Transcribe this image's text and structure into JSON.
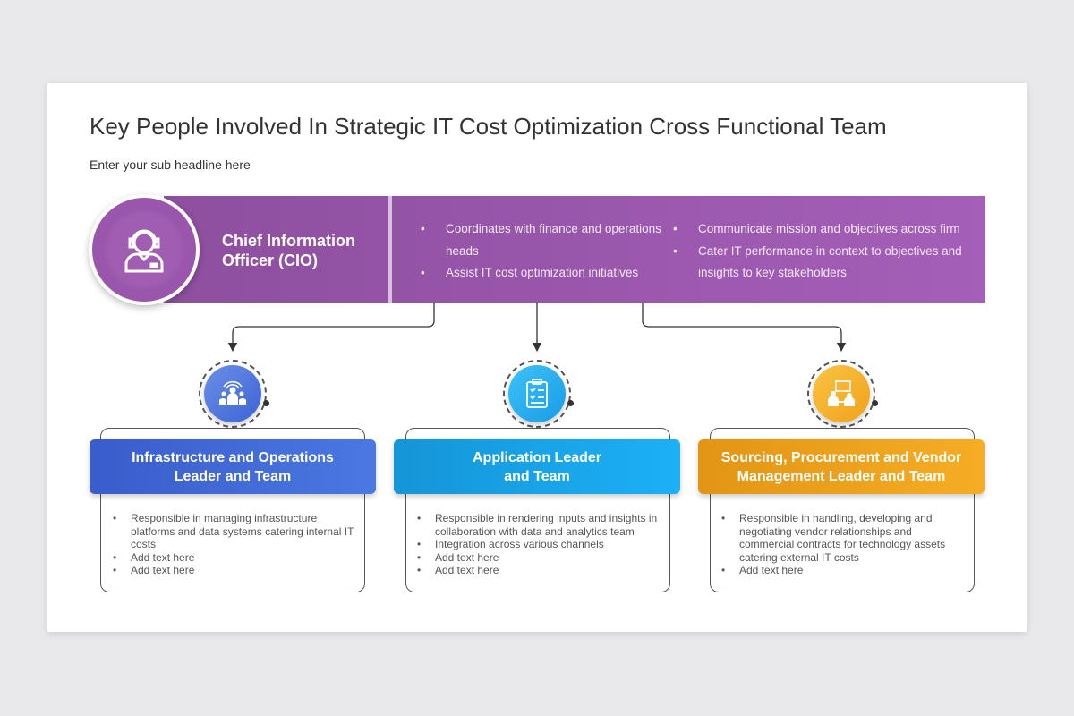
{
  "title": "Key People Involved In Strategic IT Cost Optimization Cross Functional Team",
  "subtitle": "Enter your sub headline here",
  "cio": {
    "title_line1": "Chief Information",
    "title_line2": "Officer (CIO)",
    "icon": "user-headset-icon",
    "bullets_left": [
      "Coordinates with finance and operations heads",
      "Assist IT cost optimization initiatives"
    ],
    "bullets_right": [
      "Communicate mission and objectives across firm",
      "Cater IT performance in context to objectives and insights to key stakeholders"
    ],
    "color": "#9a55ad"
  },
  "teams": [
    {
      "title_line1": "Infrastructure and Operations",
      "title_line2": "Leader and Team",
      "icon": "team-broadcast-icon",
      "color": "#4169d6",
      "bullets": [
        "Responsible in managing infrastructure platforms and data systems catering internal IT costs",
        "Add text here",
        "Add text here"
      ]
    },
    {
      "title_line1": "Application Leader",
      "title_line2": "and Team",
      "icon": "clipboard-checklist-icon",
      "color": "#1ba7ea",
      "bullets": [
        "Responsible in rendering inputs and insights in collaboration with data and analytics team",
        "Integration across various channels",
        "Add text here",
        "Add text here"
      ]
    },
    {
      "title_line1": "Sourcing, Procurement and Vendor",
      "title_line2": "Management Leader and Team",
      "icon": "meeting-presentation-icon",
      "color": "#f0a51f",
      "bullets": [
        "Responsible in handling, developing and negotiating vendor relationships and commercial contracts for technology assets catering external IT costs",
        "Add text here"
      ]
    }
  ]
}
